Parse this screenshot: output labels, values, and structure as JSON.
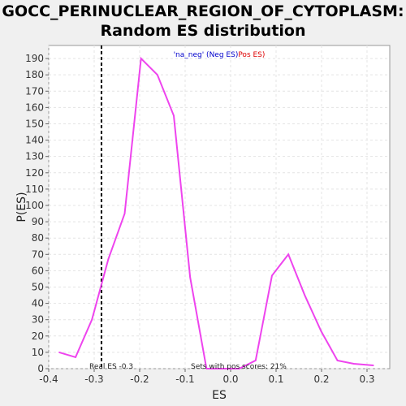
{
  "chart_data": {
    "type": "line",
    "title_line1": "GOCC_PERINUCLEAR_REGION_OF_CYTOPLASM:",
    "title_line2": "Random ES distribution",
    "xlabel": "ES",
    "ylabel": "P(ES)",
    "xlim": [
      -0.4,
      0.35
    ],
    "ylim": [
      0,
      198
    ],
    "xticks": [
      "-0.4",
      "-0.3",
      "-0.2",
      "-0.1",
      "0.0",
      "0.1",
      "0.2",
      "0.3"
    ],
    "xtick_values": [
      -0.4,
      -0.3,
      -0.2,
      -0.1,
      0.0,
      0.1,
      0.2,
      0.3
    ],
    "yticks": [
      0,
      10,
      20,
      30,
      40,
      50,
      60,
      70,
      80,
      90,
      100,
      110,
      120,
      130,
      140,
      150,
      160,
      170,
      180,
      190
    ],
    "grid": true,
    "series": [
      {
        "color": "#ee44ee",
        "x": [
          -0.377,
          -0.341,
          -0.305,
          -0.269,
          -0.233,
          -0.197,
          -0.161,
          -0.125,
          -0.089,
          -0.053,
          -0.017,
          0.019,
          0.055,
          0.091,
          0.127,
          0.163,
          0.199,
          0.235,
          0.271,
          0.314
        ],
        "y": [
          10,
          7,
          30,
          67,
          95,
          190,
          180,
          155,
          56,
          0,
          0,
          0,
          5,
          57,
          70,
          45,
          23,
          5,
          3,
          2
        ]
      }
    ],
    "real_es": -0.284,
    "real_es_label": "Real ES -0.3",
    "pos_scores_label": "Sets with pos scores: 21%",
    "legend": {
      "neg_label": "'na_neg' (Neg ES)",
      "neg_color": "#0000cc",
      "pos_label": "Pos ES)",
      "pos_color": "#dd0000"
    },
    "colors": {
      "background": "#f0f0f0",
      "plot_background": "#ffffff",
      "grid": "#e4e4e4",
      "line": "#ee44ee"
    }
  }
}
